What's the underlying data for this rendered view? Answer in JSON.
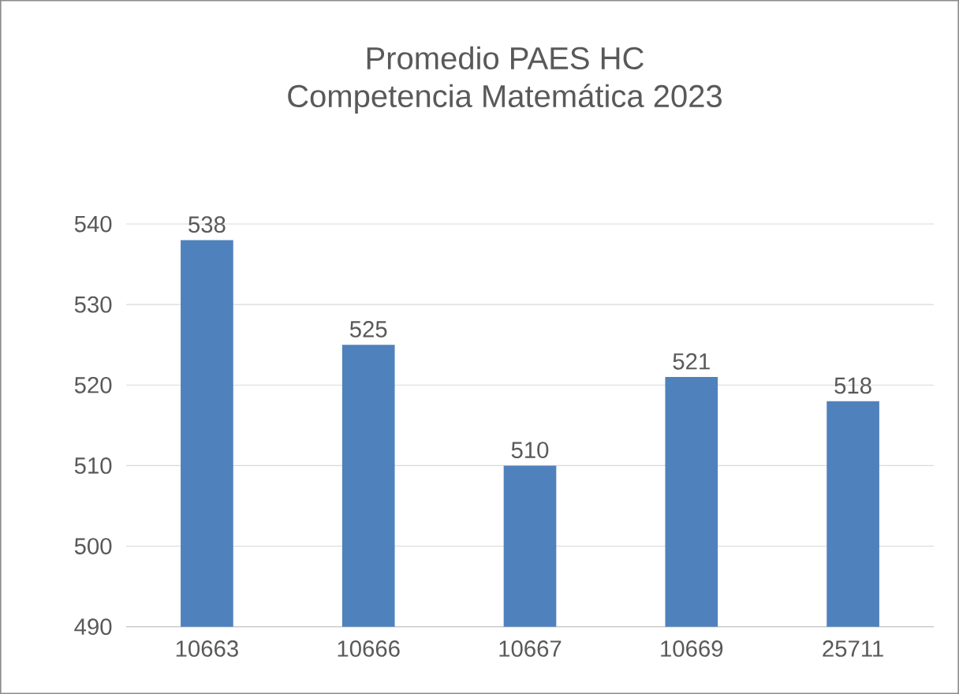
{
  "chart_data": {
    "type": "bar",
    "title": "Promedio PAES HC\nCompetencia Matemática 2023",
    "categories": [
      "10663",
      "10666",
      "10667",
      "10669",
      "25711"
    ],
    "values": [
      538,
      525,
      510,
      521,
      518
    ],
    "color": "#4f81bd",
    "ylim": [
      490,
      540
    ],
    "yticks": [
      490,
      500,
      510,
      520,
      530,
      540
    ],
    "grid": "y",
    "data_labels": true
  }
}
